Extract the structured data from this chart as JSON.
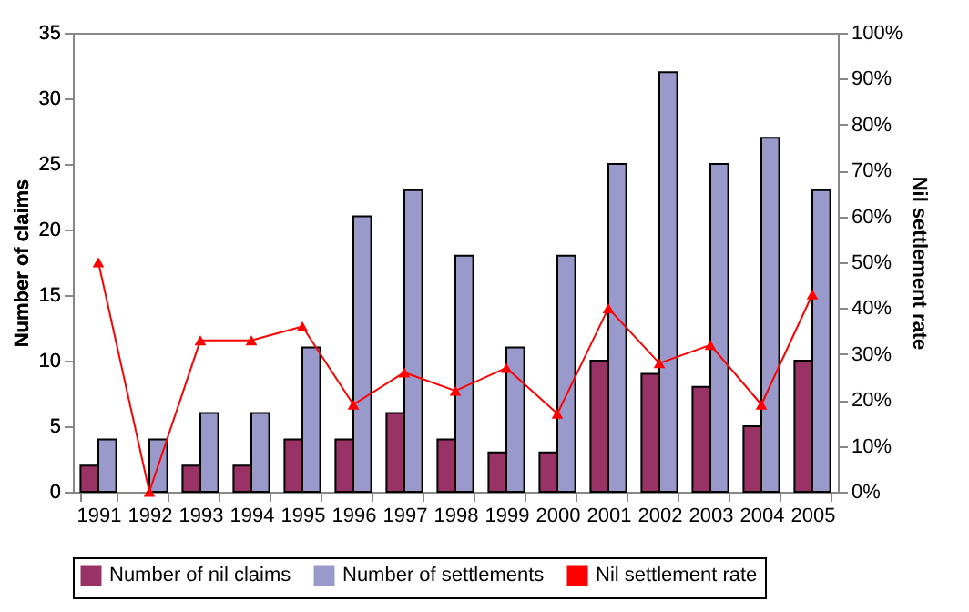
{
  "chart_data": {
    "type": "bar",
    "categories": [
      "1991",
      "1992",
      "1993",
      "1994",
      "1995",
      "1996",
      "1997",
      "1998",
      "1999",
      "2000",
      "2001",
      "2002",
      "2003",
      "2004",
      "2005"
    ],
    "ylabel": "Number of claims",
    "y2label": "Nil settlement rate",
    "ylim": [
      0,
      35
    ],
    "yticks": [
      0,
      5,
      10,
      15,
      20,
      25,
      30,
      35
    ],
    "y2lim": [
      0,
      100
    ],
    "y2ticks": [
      {
        "value": 0,
        "label": "0%"
      },
      {
        "value": 10,
        "label": "10%"
      },
      {
        "value": 20,
        "label": "20%"
      },
      {
        "value": 30,
        "label": "30%"
      },
      {
        "value": 40,
        "label": "40%"
      },
      {
        "value": 50,
        "label": "50%"
      },
      {
        "value": 60,
        "label": "60%"
      },
      {
        "value": 70,
        "label": "70%"
      },
      {
        "value": 80,
        "label": "80%"
      },
      {
        "value": 90,
        "label": "90%"
      },
      {
        "value": 100,
        "label": "100%"
      }
    ],
    "series": [
      {
        "name": "Number of nil claims",
        "color": "#993366",
        "values": [
          2,
          0,
          2,
          2,
          4,
          4,
          6,
          4,
          3,
          3,
          10,
          9,
          8,
          5,
          10
        ]
      },
      {
        "name": "Number of settlements",
        "color": "#9999cc",
        "values": [
          4,
          4,
          6,
          6,
          11,
          21,
          23,
          18,
          11,
          18,
          25,
          32,
          25,
          27,
          23
        ]
      },
      {
        "name": "Nil settlement rate",
        "type": "line",
        "axis": "y2",
        "color": "#ff0000",
        "marker": "triangle",
        "values": [
          50,
          0,
          33,
          33,
          36,
          19,
          26,
          22,
          27,
          17,
          40,
          28,
          32,
          19,
          43
        ]
      }
    ],
    "grid": false,
    "legend": "bottom"
  }
}
